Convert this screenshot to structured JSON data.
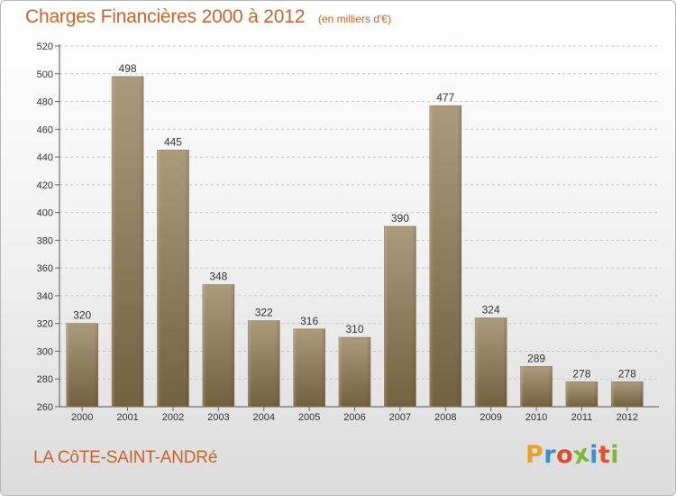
{
  "header": {
    "title": "Charges Financières 2000 à 2012",
    "subtitle": "(en milliers d'€)"
  },
  "footer": {
    "commune": "LA CôTE-SAINT-ANDRé",
    "brand": "Proxiti",
    "brand_colors": [
      "#e8a12a",
      "#3a8fd4",
      "#d94f2a",
      "#7cb83a",
      "#3a8fd4",
      "#e84f2a",
      "#7cb83a"
    ]
  },
  "colors": {
    "title": "#c8642a",
    "bar_light": "#ab9a7c",
    "bar_dark": "#72613f",
    "grid": "#c8c8c8"
  },
  "chart_data": {
    "type": "bar",
    "title": "Charges Financières 2000 à 2012",
    "subtitle": "(en milliers d'€)",
    "categories": [
      "2000",
      "2001",
      "2002",
      "2003",
      "2004",
      "2005",
      "2006",
      "2007",
      "2008",
      "2009",
      "2010",
      "2011",
      "2012"
    ],
    "values": [
      320,
      498,
      445,
      348,
      322,
      316,
      310,
      390,
      477,
      324,
      289,
      278,
      278
    ],
    "ylim": [
      260,
      520
    ],
    "yticks": [
      260,
      280,
      300,
      320,
      340,
      360,
      380,
      400,
      420,
      440,
      460,
      480,
      500,
      520
    ],
    "grid": "horizontal dashed",
    "xlabel": "",
    "ylabel": ""
  }
}
